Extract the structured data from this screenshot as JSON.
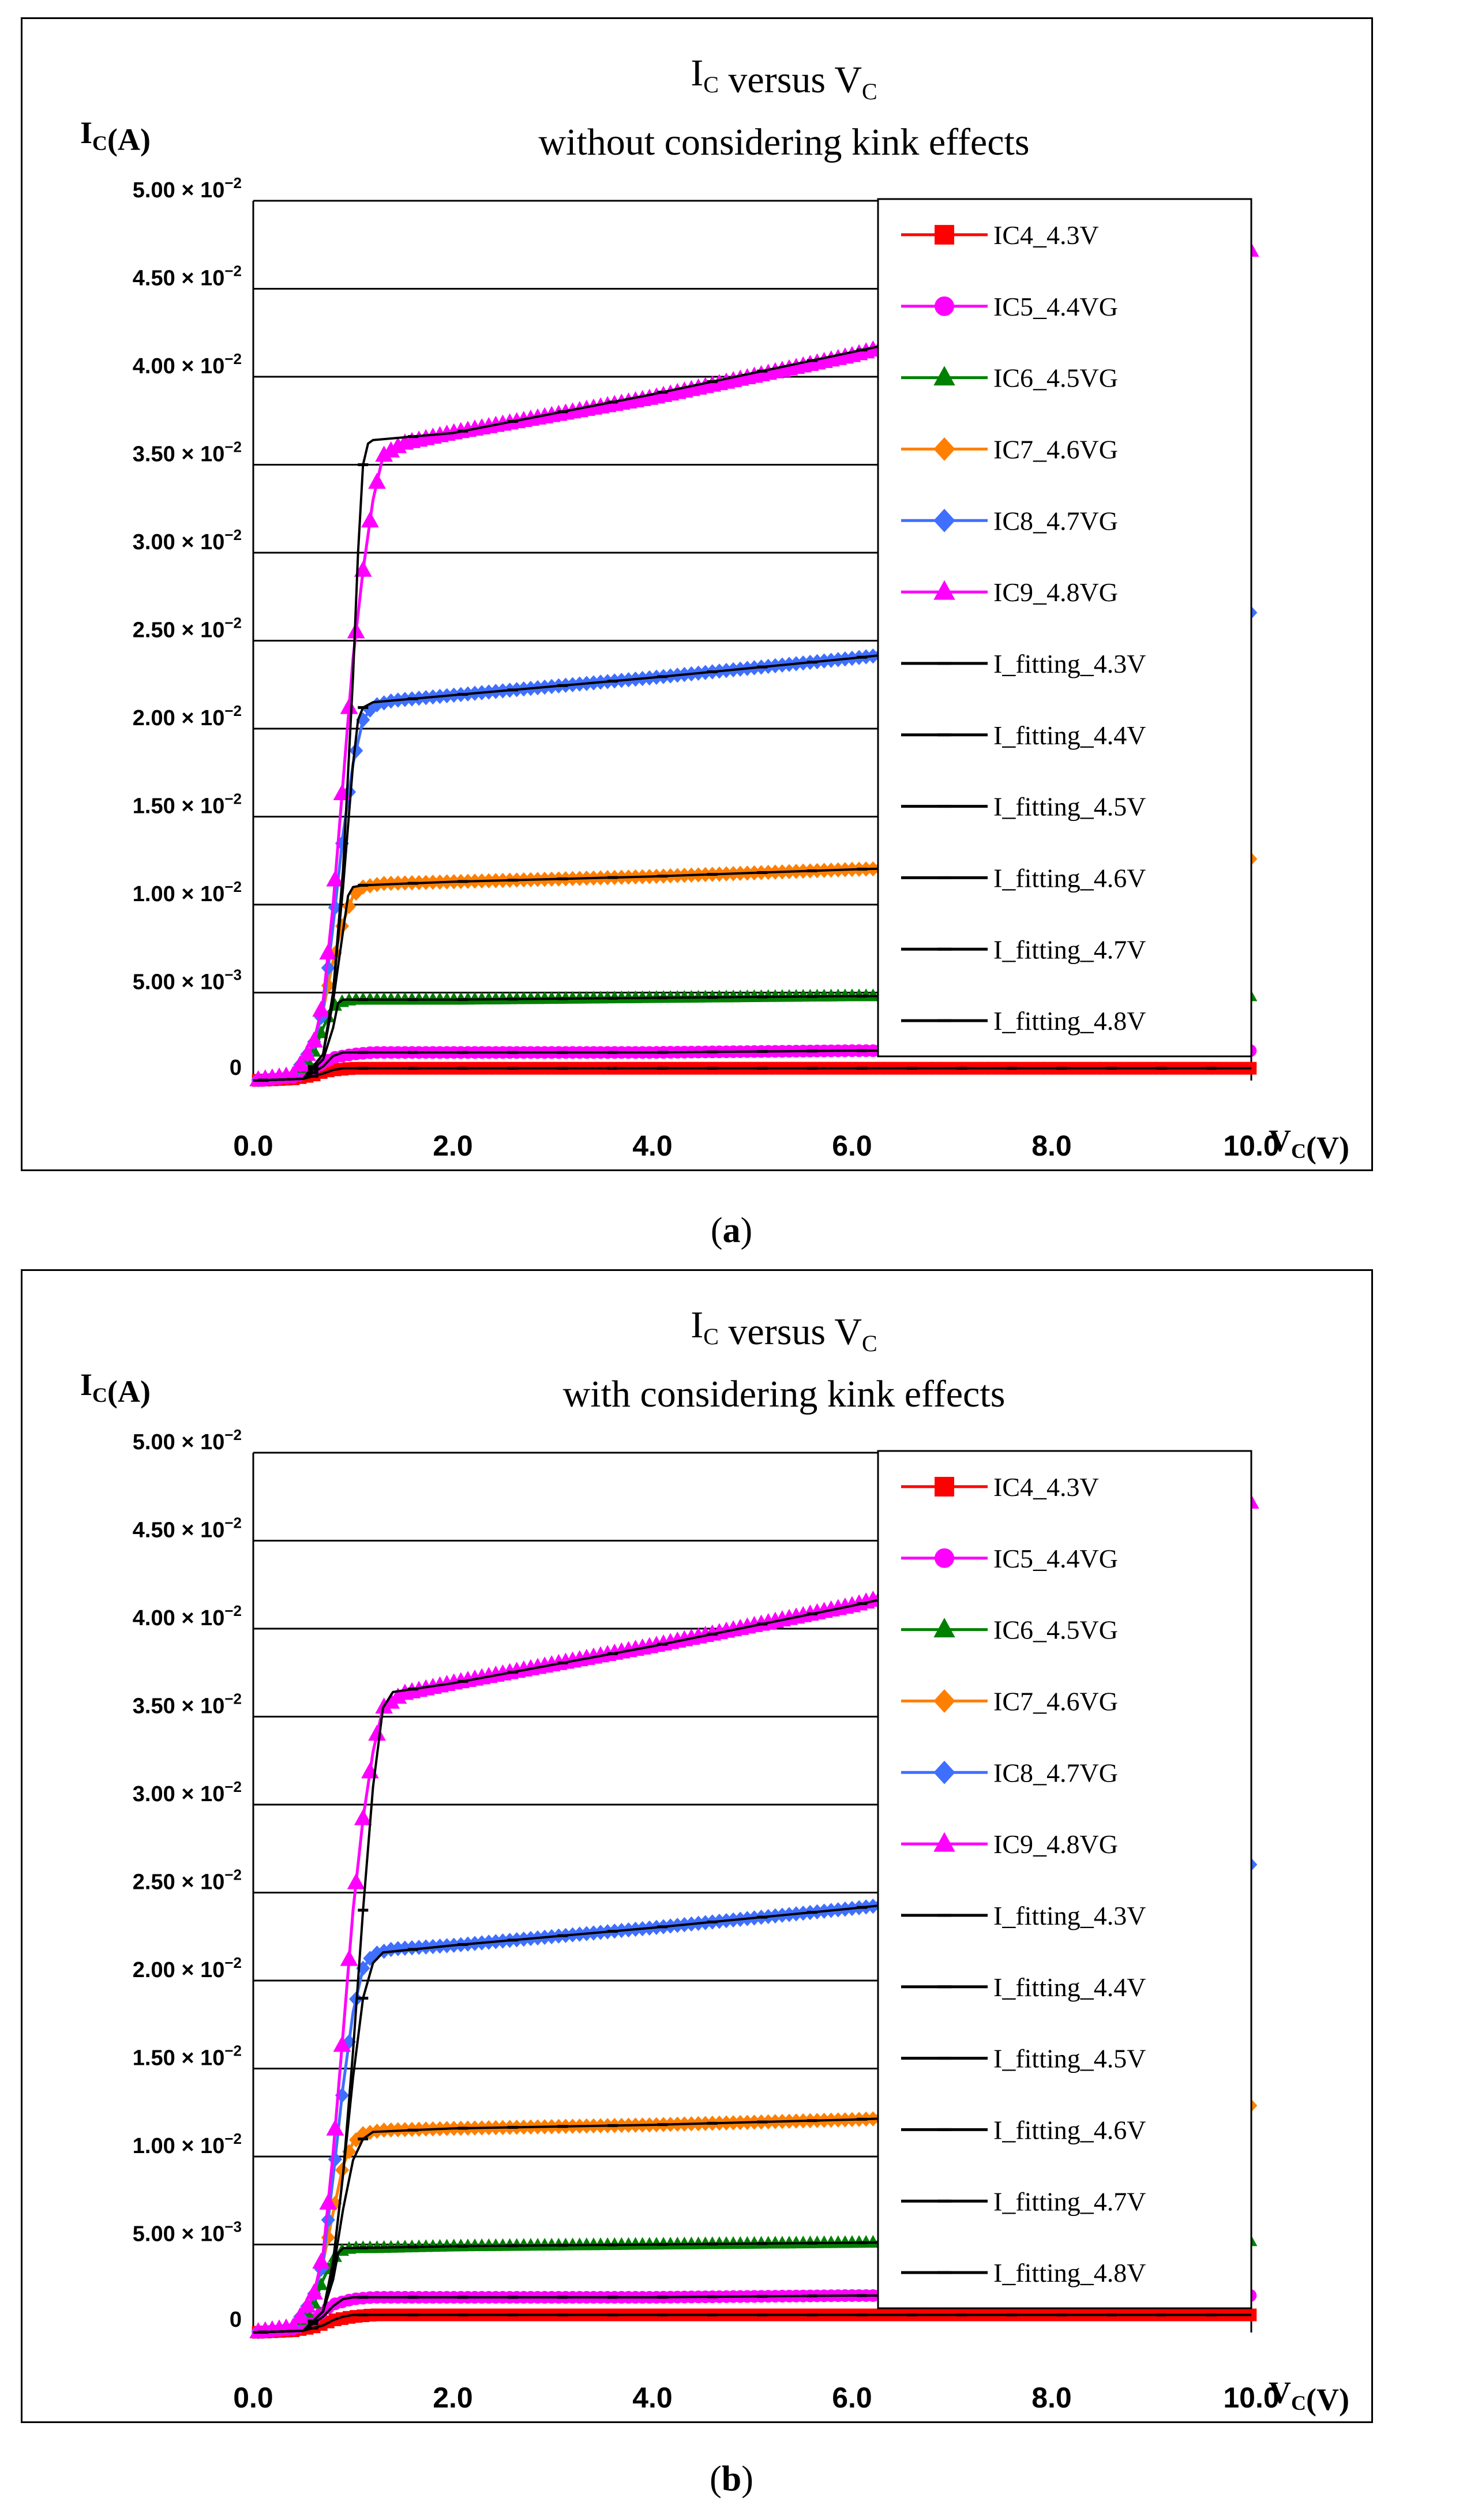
{
  "chart_data": [
    {
      "type": "line",
      "panel_label": "a",
      "title_main": "I",
      "title_main_sub": "C",
      "title_mid": " versus V",
      "title_mid_sub": "C",
      "subtitle": "without considering kink effects",
      "ylabel_main": "I",
      "ylabel_sub": "C",
      "ylabel_unit": "(A)",
      "xlabel_main": "V",
      "xlabel_sub": "C",
      "xlabel_unit": "(V)",
      "xlim": [
        0,
        10
      ],
      "ylim": [
        0,
        0.05
      ],
      "x_ticks": [
        "0.0",
        "2.0",
        "4.0",
        "6.0",
        "8.0",
        "10.0"
      ],
      "x_tick_values": [
        0,
        2,
        4,
        6,
        8,
        10
      ],
      "y_ticks": [
        {
          "value": 0,
          "mant": "0",
          "exp": ""
        },
        {
          "value": 0.005,
          "mant": "5.00 × 10",
          "exp": "−3"
        },
        {
          "value": 0.01,
          "mant": "1.00 × 10",
          "exp": "−2"
        },
        {
          "value": 0.015,
          "mant": "1.50 × 10",
          "exp": "−2"
        },
        {
          "value": 0.02,
          "mant": "2.00 × 10",
          "exp": "−2"
        },
        {
          "value": 0.025,
          "mant": "2.50 × 10",
          "exp": "−2"
        },
        {
          "value": 0.03,
          "mant": "3.00 × 10",
          "exp": "−2"
        },
        {
          "value": 0.035,
          "mant": "3.50 × 10",
          "exp": "−2"
        },
        {
          "value": 0.04,
          "mant": "4.00 × 10",
          "exp": "−2"
        },
        {
          "value": 0.045,
          "mant": "4.50 × 10",
          "exp": "−2"
        },
        {
          "value": 0.05,
          "mant": "5.00 × 10",
          "exp": "−2"
        }
      ],
      "grid": "horizontal",
      "legend_position": "right",
      "series": [
        {
          "name": "IC4_4.3V",
          "color": "#ff0000",
          "marker": "square",
          "x": [
            0,
            0.4,
            0.6,
            0.7,
            0.8,
            1.0,
            1.2,
            2,
            4,
            6,
            8,
            10
          ],
          "y": [
            0,
            0.0001,
            0.0003,
            0.0005,
            0.0006,
            0.0007,
            0.0007,
            0.0007,
            0.0007,
            0.0007,
            0.0007,
            0.0007
          ]
        },
        {
          "name": "IC5_4.4VG",
          "color": "#ff00ff",
          "marker": "circle",
          "x": [
            0,
            0.4,
            0.6,
            0.7,
            0.8,
            1.0,
            1.2,
            2,
            4,
            6,
            8,
            10
          ],
          "y": [
            0,
            0.0002,
            0.0006,
            0.001,
            0.0013,
            0.0015,
            0.0016,
            0.0016,
            0.0016,
            0.0017,
            0.0017,
            0.0017
          ]
        },
        {
          "name": "IC6_4.5VG",
          "color": "#008000",
          "marker": "triangle",
          "x": [
            0,
            0.4,
            0.6,
            0.7,
            0.8,
            0.9,
            1.0,
            1.2,
            2,
            4,
            6,
            8,
            10
          ],
          "y": [
            0,
            0.0003,
            0.0015,
            0.003,
            0.0042,
            0.0045,
            0.0046,
            0.0046,
            0.0046,
            0.0047,
            0.0048,
            0.0048,
            0.0048
          ]
        },
        {
          "name": "IC7_4.6VG",
          "color": "#ff7f00",
          "marker": "diamond",
          "x": [
            0,
            0.4,
            0.6,
            0.7,
            0.8,
            0.9,
            1.0,
            1.1,
            1.3,
            2,
            4,
            6,
            8,
            10
          ],
          "y": [
            0,
            0.0003,
            0.002,
            0.004,
            0.0068,
            0.009,
            0.0105,
            0.011,
            0.0112,
            0.0113,
            0.0116,
            0.012,
            0.0123,
            0.0126
          ]
        },
        {
          "name": "IC8_4.7VG",
          "color": "#3f6fff",
          "marker": "diamond",
          "x": [
            0,
            0.4,
            0.6,
            0.7,
            0.8,
            0.9,
            1.0,
            1.1,
            1.2,
            1.4,
            2,
            4,
            6,
            8,
            10
          ],
          "y": [
            0,
            0.0003,
            0.002,
            0.004,
            0.0088,
            0.014,
            0.018,
            0.0205,
            0.0213,
            0.0216,
            0.0219,
            0.0229,
            0.024,
            0.0252,
            0.0266
          ]
        },
        {
          "name": "IC9_4.8VG",
          "color": "#ff00ff",
          "marker": "triangle",
          "x": [
            0,
            0.4,
            0.6,
            0.7,
            0.8,
            0.9,
            1.0,
            1.1,
            1.2,
            1.3,
            1.5,
            2,
            4,
            6,
            8,
            10
          ],
          "y": [
            0,
            0.0003,
            0.002,
            0.0045,
            0.01,
            0.017,
            0.024,
            0.029,
            0.033,
            0.0355,
            0.0362,
            0.0368,
            0.0388,
            0.0412,
            0.0442,
            0.0472
          ]
        },
        {
          "name": "I_fitting_4.3V",
          "color": "#000000",
          "marker": "dash",
          "x": [
            0,
            0.5,
            0.7,
            0.8,
            0.9,
            1.0,
            2,
            4,
            6,
            8,
            10
          ],
          "y": [
            0,
            0.0001,
            0.0004,
            0.0006,
            0.0007,
            0.0007,
            0.0007,
            0.0007,
            0.0007,
            0.0007,
            0.0007
          ]
        },
        {
          "name": "I_fitting_4.4V",
          "color": "#000000",
          "marker": "dash",
          "x": [
            0,
            0.5,
            0.7,
            0.8,
            0.9,
            1.0,
            2,
            4,
            6,
            8,
            10
          ],
          "y": [
            0,
            0.0001,
            0.0008,
            0.0014,
            0.0016,
            0.0016,
            0.0016,
            0.0016,
            0.0017,
            0.0017,
            0.0017
          ]
        },
        {
          "name": "I_fitting_4.5V",
          "color": "#000000",
          "marker": "dash",
          "x": [
            0,
            0.5,
            0.7,
            0.8,
            0.85,
            0.9,
            1.0,
            2,
            4,
            6,
            8,
            10
          ],
          "y": [
            0,
            0.0001,
            0.0012,
            0.003,
            0.0044,
            0.0046,
            0.0046,
            0.0046,
            0.0047,
            0.0048,
            0.0048,
            0.0048
          ]
        },
        {
          "name": "I_fitting_4.6V",
          "color": "#000000",
          "marker": "dash",
          "x": [
            0,
            0.5,
            0.7,
            0.8,
            0.9,
            0.95,
            1.0,
            1.1,
            2,
            4,
            6,
            8,
            10
          ],
          "y": [
            0,
            0.0001,
            0.0015,
            0.0045,
            0.0085,
            0.0105,
            0.011,
            0.0111,
            0.0113,
            0.0116,
            0.012,
            0.0123,
            0.0126
          ]
        },
        {
          "name": "I_fitting_4.7V",
          "color": "#000000",
          "marker": "dash",
          "x": [
            0,
            0.5,
            0.7,
            0.8,
            0.9,
            1.0,
            1.05,
            1.1,
            1.2,
            2,
            4,
            6,
            8,
            10
          ],
          "y": [
            0,
            0.0001,
            0.0015,
            0.005,
            0.011,
            0.018,
            0.0205,
            0.0212,
            0.0215,
            0.0219,
            0.0229,
            0.024,
            0.0252,
            0.0264
          ]
        },
        {
          "name": "I_fitting_4.8V",
          "color": "#000000",
          "marker": "dash",
          "x": [
            0,
            0.5,
            0.7,
            0.8,
            0.9,
            1.0,
            1.05,
            1.1,
            1.15,
            1.2,
            2,
            4,
            6,
            8,
            10
          ],
          "y": [
            0,
            0.0001,
            0.0015,
            0.005,
            0.012,
            0.023,
            0.03,
            0.035,
            0.0362,
            0.0364,
            0.0368,
            0.039,
            0.0414,
            0.0438,
            0.0462
          ]
        }
      ]
    },
    {
      "type": "line",
      "panel_label": "b",
      "title_main": "I",
      "title_main_sub": "C",
      "title_mid": " versus V",
      "title_mid_sub": "C",
      "subtitle": "with considering kink effects",
      "ylabel_main": "I",
      "ylabel_sub": "C",
      "ylabel_unit": "(A)",
      "xlabel_main": "V",
      "xlabel_sub": "C",
      "xlabel_unit": "(V)",
      "xlim": [
        0,
        10
      ],
      "ylim": [
        0,
        0.05
      ],
      "x_ticks": [
        "0.0",
        "2.0",
        "4.0",
        "6.0",
        "8.0",
        "10.0"
      ],
      "x_tick_values": [
        0,
        2,
        4,
        6,
        8,
        10
      ],
      "y_ticks": [
        {
          "value": 0,
          "mant": "0",
          "exp": ""
        },
        {
          "value": 0.005,
          "mant": "5.00 × 10",
          "exp": "−3"
        },
        {
          "value": 0.01,
          "mant": "1.00 × 10",
          "exp": "−2"
        },
        {
          "value": 0.015,
          "mant": "1.50 × 10",
          "exp": "−2"
        },
        {
          "value": 0.02,
          "mant": "2.00 × 10",
          "exp": "−2"
        },
        {
          "value": 0.025,
          "mant": "2.50 × 10",
          "exp": "−2"
        },
        {
          "value": 0.03,
          "mant": "3.00 × 10",
          "exp": "−2"
        },
        {
          "value": 0.035,
          "mant": "3.50 × 10",
          "exp": "−2"
        },
        {
          "value": 0.04,
          "mant": "4.00 × 10",
          "exp": "−2"
        },
        {
          "value": 0.045,
          "mant": "4.50 × 10",
          "exp": "−2"
        },
        {
          "value": 0.05,
          "mant": "5.00 × 10",
          "exp": "−2"
        }
      ],
      "grid": "horizontal",
      "legend_position": "right",
      "series": [
        {
          "name": "IC4_4.3V",
          "color": "#ff0000",
          "marker": "square",
          "x": [
            0,
            0.4,
            0.6,
            0.7,
            0.8,
            1.0,
            1.2,
            2,
            4,
            6,
            8,
            10
          ],
          "y": [
            0,
            0.0001,
            0.0003,
            0.0005,
            0.0007,
            0.0009,
            0.001,
            0.001,
            0.001,
            0.001,
            0.001,
            0.001
          ]
        },
        {
          "name": "IC5_4.4VG",
          "color": "#ff00ff",
          "marker": "circle",
          "x": [
            0,
            0.4,
            0.6,
            0.7,
            0.8,
            1.0,
            1.2,
            2,
            4,
            6,
            8,
            10
          ],
          "y": [
            0,
            0.0002,
            0.0007,
            0.0012,
            0.0016,
            0.0019,
            0.002,
            0.002,
            0.002,
            0.0021,
            0.0021,
            0.0021
          ]
        },
        {
          "name": "IC6_4.5VG",
          "color": "#008000",
          "marker": "triangle",
          "x": [
            0,
            0.4,
            0.6,
            0.7,
            0.8,
            0.9,
            1.0,
            1.2,
            2,
            4,
            6,
            8,
            10
          ],
          "y": [
            0,
            0.0003,
            0.0015,
            0.003,
            0.0042,
            0.0047,
            0.0048,
            0.0048,
            0.0049,
            0.005,
            0.0051,
            0.0052,
            0.0052
          ]
        },
        {
          "name": "IC7_4.6VG",
          "color": "#ff7f00",
          "marker": "diamond",
          "x": [
            0,
            0.4,
            0.6,
            0.7,
            0.8,
            0.9,
            1.0,
            1.1,
            1.3,
            2,
            4,
            6,
            8,
            10
          ],
          "y": [
            0,
            0.0003,
            0.002,
            0.004,
            0.0068,
            0.0095,
            0.0108,
            0.0113,
            0.0115,
            0.0116,
            0.0118,
            0.0121,
            0.0125,
            0.0129
          ]
        },
        {
          "name": "IC8_4.7VG",
          "color": "#3f6fff",
          "marker": "diamond",
          "x": [
            0,
            0.4,
            0.6,
            0.7,
            0.8,
            0.9,
            1.0,
            1.1,
            1.2,
            1.4,
            2,
            4,
            6,
            8,
            10
          ],
          "y": [
            0,
            0.0003,
            0.002,
            0.004,
            0.0088,
            0.014,
            0.0182,
            0.0207,
            0.0215,
            0.0218,
            0.022,
            0.023,
            0.0241,
            0.0253,
            0.0266
          ]
        },
        {
          "name": "IC9_4.8VG",
          "color": "#ff00ff",
          "marker": "triangle",
          "x": [
            0,
            0.4,
            0.6,
            0.7,
            0.8,
            0.9,
            1.0,
            1.1,
            1.2,
            1.3,
            1.5,
            2,
            4,
            6,
            8,
            10
          ],
          "y": [
            0,
            0.0003,
            0.002,
            0.0045,
            0.0102,
            0.017,
            0.024,
            0.0292,
            0.033,
            0.0355,
            0.0363,
            0.0369,
            0.039,
            0.0413,
            0.0443,
            0.0472
          ]
        },
        {
          "name": "I_fitting_4.3V",
          "color": "#000000",
          "marker": "dash",
          "x": [
            0,
            0.5,
            0.7,
            0.8,
            0.9,
            1.0,
            2,
            4,
            6,
            8,
            10
          ],
          "y": [
            0,
            0.0001,
            0.0004,
            0.0007,
            0.0009,
            0.001,
            0.001,
            0.001,
            0.001,
            0.001,
            0.001
          ]
        },
        {
          "name": "I_fitting_4.4V",
          "color": "#000000",
          "marker": "dash",
          "x": [
            0,
            0.5,
            0.7,
            0.8,
            0.9,
            1.0,
            2,
            4,
            6,
            8,
            10
          ],
          "y": [
            0,
            0.0001,
            0.0009,
            0.0015,
            0.0019,
            0.002,
            0.002,
            0.002,
            0.0021,
            0.0021,
            0.0021
          ]
        },
        {
          "name": "I_fitting_4.5V",
          "color": "#000000",
          "marker": "dash",
          "x": [
            0,
            0.5,
            0.7,
            0.8,
            0.85,
            0.9,
            1.0,
            2,
            4,
            6,
            8,
            10
          ],
          "y": [
            0,
            0.0001,
            0.0012,
            0.003,
            0.0045,
            0.0048,
            0.0048,
            0.0049,
            0.005,
            0.0051,
            0.0052,
            0.0052
          ]
        },
        {
          "name": "I_fitting_4.6V",
          "color": "#000000",
          "marker": "dash",
          "x": [
            0,
            0.5,
            0.7,
            0.8,
            0.9,
            1.0,
            1.1,
            1.2,
            2,
            4,
            6,
            8,
            10
          ],
          "y": [
            0,
            0.0001,
            0.0012,
            0.0035,
            0.007,
            0.0098,
            0.011,
            0.0114,
            0.0116,
            0.0118,
            0.0121,
            0.0125,
            0.0129
          ]
        },
        {
          "name": "I_fitting_4.7V",
          "color": "#000000",
          "marker": "dash",
          "x": [
            0,
            0.5,
            0.7,
            0.8,
            0.9,
            1.0,
            1.1,
            1.2,
            1.3,
            2,
            4,
            6,
            8,
            10
          ],
          "y": [
            0,
            0.0001,
            0.0012,
            0.004,
            0.009,
            0.0145,
            0.019,
            0.021,
            0.0216,
            0.022,
            0.023,
            0.0241,
            0.0253,
            0.0264
          ]
        },
        {
          "name": "I_fitting_4.8V",
          "color": "#000000",
          "marker": "dash",
          "x": [
            0,
            0.5,
            0.7,
            0.8,
            0.9,
            1.0,
            1.1,
            1.2,
            1.3,
            1.4,
            2,
            4,
            6,
            8,
            10
          ],
          "y": [
            0,
            0.0001,
            0.0012,
            0.004,
            0.009,
            0.016,
            0.024,
            0.031,
            0.0355,
            0.0364,
            0.0369,
            0.039,
            0.0413,
            0.0438,
            0.0462
          ]
        }
      ]
    }
  ]
}
